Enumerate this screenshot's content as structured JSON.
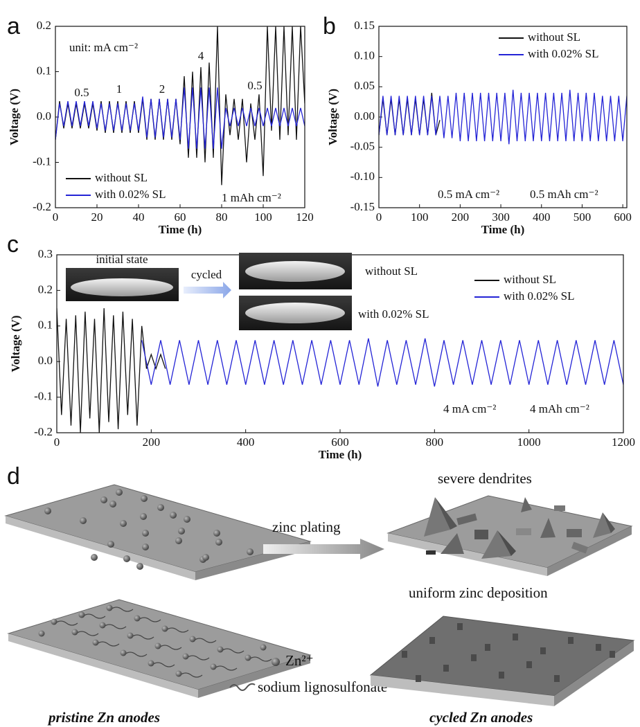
{
  "chart_data": [
    {
      "type": "line",
      "panel": "a",
      "xlabel": "Time (h)",
      "ylabel": "Voltage (V)",
      "xlim": [
        0,
        120
      ],
      "ylim": [
        -0.2,
        0.2
      ],
      "xticks": [
        0,
        20,
        40,
        60,
        80,
        100,
        120
      ],
      "yticks": [
        -0.2,
        -0.1,
        {
          "value": 0,
          "label": "0.0"
        },
        0.1,
        0.2
      ],
      "legend": "lower left",
      "annotations": [
        "unit: mA cm⁻²",
        "0.5",
        "1",
        "2",
        "4",
        "0.5",
        "1 mAh cm⁻²"
      ],
      "series": [
        {
          "name": "without SL",
          "color": "#111111",
          "x": [
            0,
            2,
            4,
            6,
            8,
            10,
            12,
            14,
            16,
            18,
            20,
            22,
            24,
            26,
            28,
            30,
            32,
            34,
            36,
            38,
            40,
            42,
            44,
            46,
            48,
            50,
            52,
            54,
            56,
            58,
            60,
            62,
            64,
            66,
            68,
            70,
            72,
            74,
            76,
            78,
            80,
            82,
            84,
            86,
            88,
            90,
            92,
            94,
            96,
            98,
            100,
            102,
            104,
            106,
            108,
            110,
            112,
            114,
            116,
            118,
            120
          ],
          "values": [
            -0.05,
            0.035,
            -0.025,
            0.03,
            -0.025,
            0.03,
            -0.025,
            0.03,
            -0.025,
            0.03,
            -0.03,
            0.035,
            -0.035,
            0.035,
            -0.035,
            0.035,
            -0.035,
            0.035,
            -0.035,
            0.035,
            -0.035,
            0.04,
            -0.05,
            0.04,
            -0.05,
            0.04,
            -0.05,
            0.04,
            -0.05,
            0.04,
            -0.06,
            0.09,
            -0.09,
            0.1,
            -0.09,
            0.11,
            -0.1,
            0.12,
            -0.09,
            0.2,
            -0.15,
            0.05,
            -0.04,
            0.04,
            -0.05,
            0.04,
            -0.1,
            0.03,
            -0.05,
            0.05,
            -0.13,
            0.2,
            -0.03,
            0.2,
            -0.05,
            0.2,
            -0.04,
            0.2,
            -0.05,
            0.2,
            0.03
          ]
        },
        {
          "name": "with 0.02% SL",
          "color": "#2323d6",
          "x": [
            0,
            2,
            4,
            6,
            8,
            10,
            12,
            14,
            16,
            18,
            20,
            22,
            24,
            26,
            28,
            30,
            32,
            34,
            36,
            38,
            40,
            42,
            44,
            46,
            48,
            50,
            52,
            54,
            56,
            58,
            60,
            62,
            64,
            66,
            68,
            70,
            72,
            74,
            76,
            78,
            80,
            82,
            84,
            86,
            88,
            90,
            92,
            94,
            96,
            98,
            100,
            102,
            104,
            106,
            108,
            110,
            112,
            114,
            116,
            118,
            120
          ],
          "values": [
            -0.05,
            0.03,
            -0.02,
            0.035,
            -0.02,
            0.035,
            -0.02,
            0.035,
            -0.02,
            0.035,
            -0.025,
            0.03,
            -0.03,
            0.03,
            -0.03,
            0.03,
            -0.03,
            0.03,
            -0.03,
            0.03,
            -0.03,
            0.045,
            -0.045,
            0.04,
            -0.045,
            0.04,
            -0.045,
            0.04,
            -0.045,
            0.04,
            -0.05,
            0.065,
            -0.07,
            0.065,
            -0.07,
            0.065,
            -0.07,
            0.065,
            -0.07,
            0.065,
            -0.07,
            0.02,
            -0.02,
            0.02,
            -0.02,
            0.02,
            -0.02,
            0.02,
            -0.02,
            0.02,
            -0.02,
            0.02,
            -0.02,
            0.02,
            -0.02,
            0.02,
            -0.02,
            0.02,
            -0.02,
            0.02,
            -0.02
          ]
        }
      ]
    },
    {
      "type": "line",
      "panel": "b",
      "xlabel": "Time (h)",
      "ylabel": "Voltage (V)",
      "xlim": [
        0,
        610
      ],
      "ylim": [
        -0.15,
        0.15
      ],
      "xticks": [
        0,
        100,
        200,
        300,
        400,
        500,
        600
      ],
      "yticks": [
        -0.15,
        {
          "value": -0.1,
          "label": "-0.10"
        },
        -0.05,
        {
          "value": 0,
          "label": "0.00"
        },
        0.05,
        {
          "value": 0.1,
          "label": "0.10"
        },
        0.15
      ],
      "legend": "upper right",
      "annotations": [
        "0.5 mA cm⁻²",
        "0.5 mAh cm⁻²"
      ],
      "series": [
        {
          "name": "without SL",
          "color": "#111111",
          "x": [
            0,
            10,
            20,
            30,
            40,
            50,
            60,
            70,
            80,
            90,
            100,
            110,
            120,
            130,
            140,
            150
          ],
          "values": [
            -0.03,
            0.03,
            -0.03,
            0.03,
            -0.03,
            0.03,
            -0.03,
            0.03,
            -0.03,
            0.03,
            -0.03,
            0.03,
            -0.03,
            0.04,
            -0.03,
            -0.005
          ]
        },
        {
          "name": "with 0.02% SL",
          "color": "#2323d6",
          "x": [
            0,
            10,
            20,
            30,
            40,
            50,
            60,
            70,
            80,
            90,
            100,
            110,
            120,
            130,
            140,
            150,
            160,
            170,
            180,
            190,
            200,
            210,
            220,
            230,
            240,
            250,
            260,
            270,
            280,
            290,
            300,
            310,
            320,
            330,
            340,
            350,
            360,
            370,
            380,
            390,
            400,
            410,
            420,
            430,
            440,
            450,
            460,
            470,
            480,
            490,
            500,
            510,
            520,
            530,
            540,
            550,
            560,
            570,
            580,
            590,
            600,
            610
          ],
          "values": [
            -0.03,
            0.035,
            -0.03,
            0.035,
            -0.03,
            0.035,
            -0.03,
            0.035,
            -0.03,
            0.035,
            -0.03,
            0.035,
            -0.03,
            0.035,
            -0.03,
            0.035,
            -0.035,
            0.035,
            -0.035,
            0.04,
            -0.04,
            0.04,
            -0.04,
            0.04,
            -0.04,
            0.04,
            -0.04,
            0.04,
            -0.04,
            0.04,
            -0.04,
            0.04,
            -0.045,
            0.045,
            -0.04,
            0.04,
            -0.04,
            0.04,
            -0.04,
            0.04,
            -0.04,
            0.04,
            -0.04,
            0.04,
            -0.04,
            0.04,
            -0.04,
            0.045,
            -0.04,
            0.04,
            -0.04,
            0.04,
            -0.04,
            0.04,
            -0.04,
            0.035,
            -0.04,
            0.035,
            -0.04,
            0.035,
            -0.04,
            0.035
          ]
        }
      ]
    },
    {
      "type": "line",
      "panel": "c",
      "xlabel": "Time (h)",
      "ylabel": "Voltage (V)",
      "xlim": [
        0,
        1200
      ],
      "ylim": [
        -0.2,
        0.3
      ],
      "xticks": [
        0,
        200,
        400,
        600,
        800,
        1000,
        1200
      ],
      "yticks": [
        -0.2,
        -0.1,
        {
          "value": 0,
          "label": "0.0"
        },
        0.1,
        0.2,
        0.3
      ],
      "legend": "upper right",
      "annotations": [
        "initial state",
        "cycled",
        "without SL",
        "with 0.02% SL",
        "4 mA cm⁻²",
        "4 mAh cm⁻²"
      ],
      "series": [
        {
          "name": "without SL",
          "color": "#111111",
          "x": [
            0,
            10,
            20,
            30,
            40,
            50,
            60,
            70,
            80,
            90,
            100,
            110,
            120,
            130,
            140,
            150,
            160,
            170,
            180,
            190,
            200,
            210,
            220,
            230
          ],
          "values": [
            0.15,
            -0.15,
            0.12,
            -0.18,
            0.13,
            -0.2,
            0.14,
            -0.16,
            0.12,
            -0.2,
            0.15,
            -0.17,
            0.13,
            -0.19,
            0.14,
            -0.15,
            0.12,
            -0.18,
            0.1,
            -0.02,
            0.02,
            -0.02,
            0.02,
            -0.02
          ]
        },
        {
          "name": "with 0.02% SL",
          "color": "#2323d6",
          "x": [
            180,
            200,
            220,
            240,
            260,
            280,
            300,
            320,
            340,
            360,
            380,
            400,
            420,
            440,
            460,
            480,
            500,
            520,
            540,
            560,
            580,
            600,
            620,
            640,
            660,
            680,
            700,
            720,
            740,
            760,
            780,
            800,
            820,
            840,
            860,
            880,
            900,
            920,
            940,
            960,
            980,
            1000,
            1020,
            1040,
            1060,
            1080,
            1100,
            1120,
            1140,
            1160,
            1180,
            1200
          ],
          "values": [
            0.06,
            -0.065,
            0.06,
            -0.065,
            0.06,
            -0.065,
            0.06,
            -0.065,
            0.06,
            -0.065,
            0.06,
            -0.065,
            0.06,
            -0.065,
            0.06,
            -0.065,
            0.06,
            -0.065,
            0.06,
            -0.065,
            0.06,
            -0.065,
            0.06,
            -0.065,
            0.065,
            -0.07,
            0.06,
            -0.065,
            0.06,
            -0.065,
            0.065,
            -0.07,
            0.06,
            -0.065,
            0.06,
            -0.065,
            0.06,
            -0.065,
            0.06,
            -0.065,
            0.06,
            -0.065,
            0.06,
            -0.065,
            0.06,
            -0.065,
            0.06,
            -0.065,
            0.06,
            -0.065,
            0.06,
            -0.065
          ]
        }
      ]
    }
  ],
  "diagram": {
    "panel": "d",
    "severe": "severe dendrites",
    "arrow": "zinc plating",
    "uniform": "uniform zinc deposition",
    "ion": "Zn²⁺",
    "additive": "sodium lignosulfonate",
    "left_caption": "pristine Zn anodes",
    "right_caption": "cycled Zn anodes"
  }
}
